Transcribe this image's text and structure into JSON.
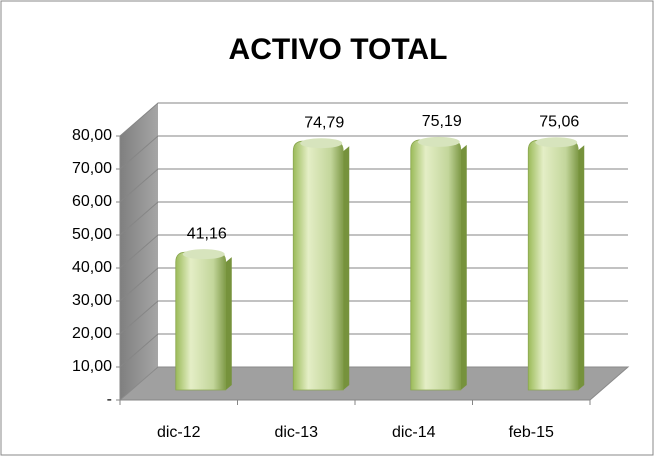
{
  "chart_data": {
    "type": "bar",
    "title": "ACTIVO TOTAL",
    "categories": [
      "dic-12",
      "dic-13",
      "dic-14",
      "feb-15"
    ],
    "values": [
      41.16,
      74.79,
      75.19,
      75.06
    ],
    "value_labels": [
      "41,16",
      "74,79",
      "75,19",
      "75,06"
    ],
    "color": "#c3d69b",
    "ylim": [
      0,
      80
    ],
    "yticks": [
      {
        "value": 0,
        "label": "-"
      },
      {
        "value": 10,
        "label": "10,00"
      },
      {
        "value": 20,
        "label": "20,00"
      },
      {
        "value": 30,
        "label": "30,00"
      },
      {
        "value": 40,
        "label": "40,00"
      },
      {
        "value": 50,
        "label": "50,00"
      },
      {
        "value": 60,
        "label": "60,00"
      },
      {
        "value": 70,
        "label": "70,00"
      },
      {
        "value": 80,
        "label": "80,00"
      }
    ],
    "grid": true
  }
}
